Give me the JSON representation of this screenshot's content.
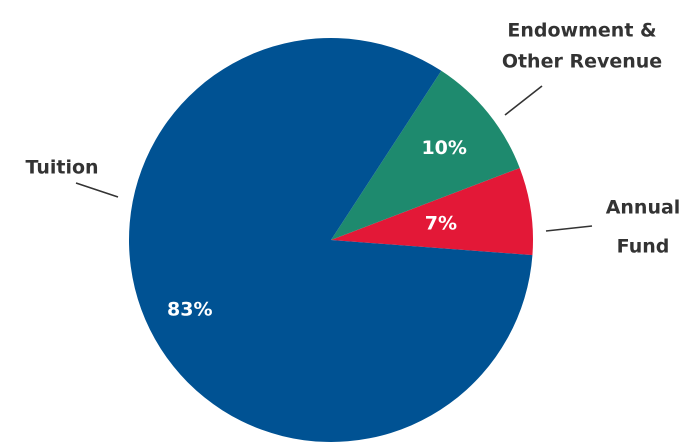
{
  "chart_data": {
    "type": "pie",
    "title": "",
    "slices": [
      {
        "name": "Tuition",
        "label_lines": [
          "Tuition"
        ],
        "value": 83,
        "value_label": "83%",
        "color": "#005293"
      },
      {
        "name": "Endowment & Other Revenue",
        "label_lines": [
          "Endowment &",
          "Other Revenue"
        ],
        "value": 10,
        "value_label": "10%",
        "color": "#1E8A6E"
      },
      {
        "name": "Annual Fund",
        "label_lines": [
          "Annual",
          "Fund"
        ],
        "value": 7,
        "value_label": "7%",
        "color": "#E31837"
      }
    ],
    "label_color": "#333333",
    "value_label_color": "#ffffff",
    "background": "#ffffff",
    "legend": "none"
  }
}
